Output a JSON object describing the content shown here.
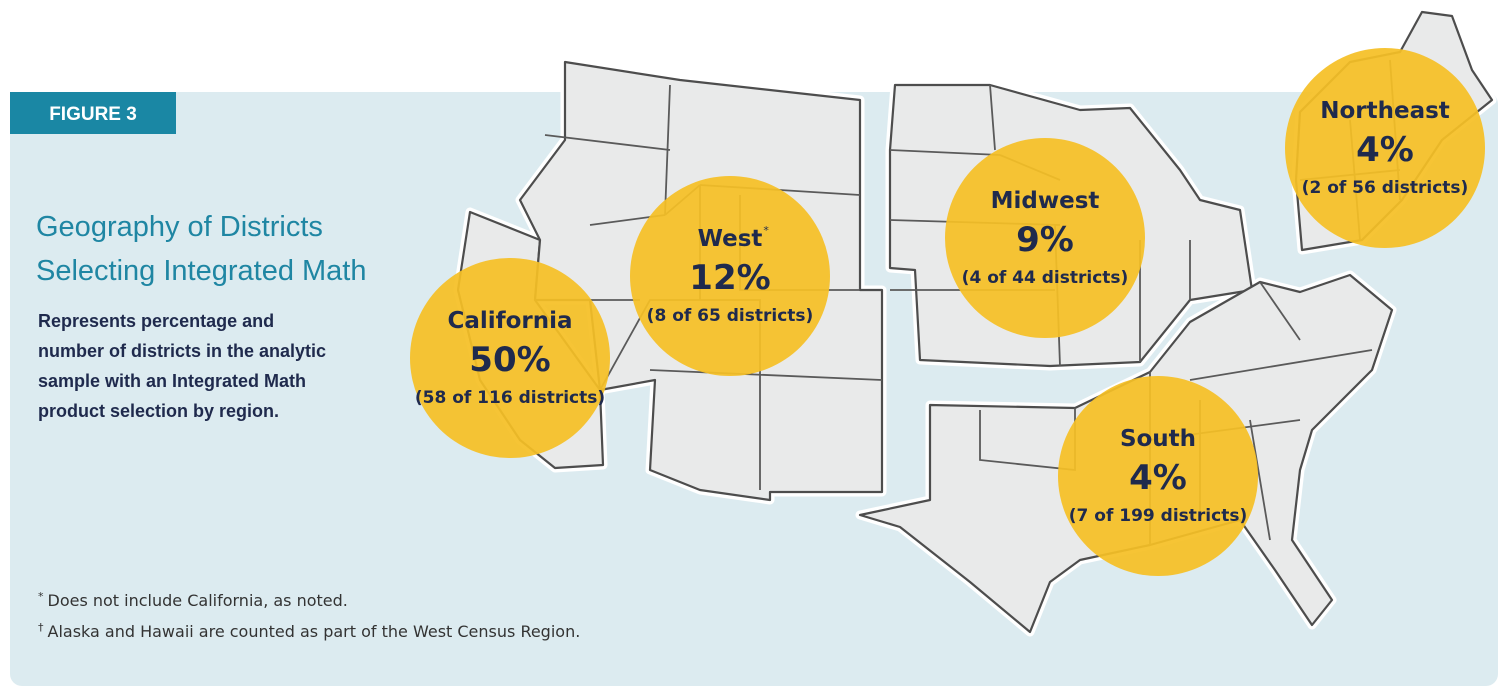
{
  "figure_label": "FIGURE 3",
  "title": [
    "Geography of Districts",
    "Selecting Integrated Math"
  ],
  "description": [
    "Represents percentage and",
    "number of districts in the analytic",
    "sample with an Integrated Math",
    "product selection by region."
  ],
  "regions": [
    {
      "name": "California",
      "percent": "50%",
      "detail": "(58 of 116 districts)"
    },
    {
      "name": "West",
      "marker": "*",
      "percent": "12%",
      "detail": "(8 of 65 districts)"
    },
    {
      "name": "Midwest",
      "percent": "9%",
      "detail": "(4 of 44 districts)"
    },
    {
      "name": "Northeast",
      "percent": "4%",
      "detail": "(2 of 56 districts)"
    },
    {
      "name": "South",
      "percent": "4%",
      "detail": "(7 of 199 districts)"
    }
  ],
  "footnotes": [
    {
      "mark": "*",
      "text": "Does not include California, as noted."
    },
    {
      "mark": "†",
      "text": "Alaska and Hawaii are counted as part of the West Census Region."
    }
  ]
}
